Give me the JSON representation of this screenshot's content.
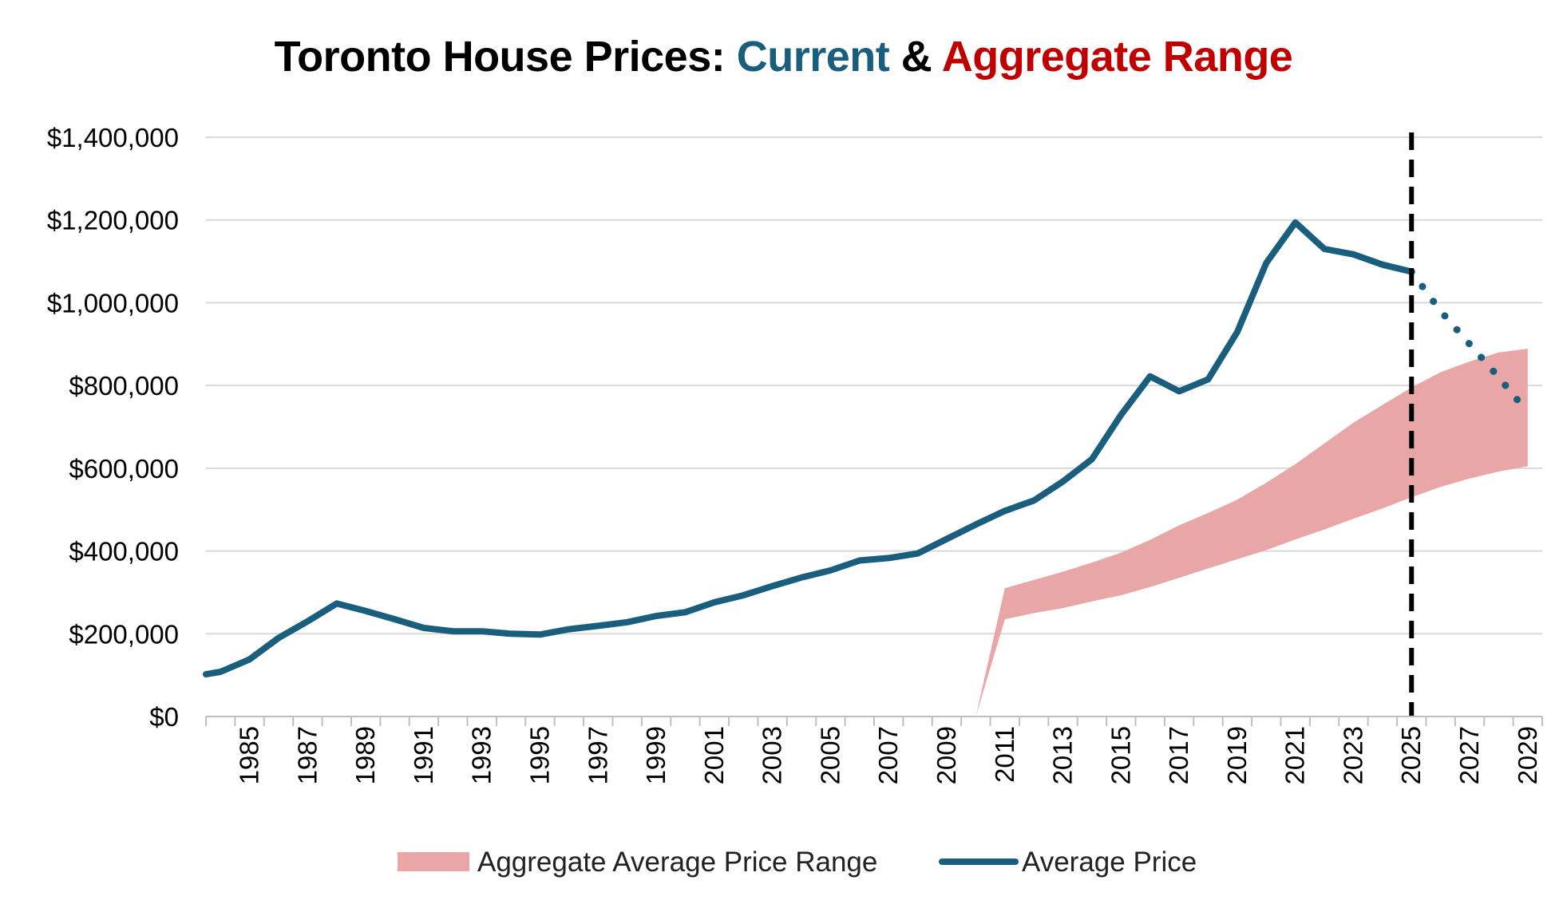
{
  "chart_data": {
    "type": "line",
    "title": {
      "part1": "Toronto House Prices: ",
      "part2": "Current",
      "part3": " & ",
      "part4": "Aggregate Range"
    },
    "colors": {
      "line": "#1a5e7d",
      "band": "#e8a6a6",
      "current_title": "#1a5e7d",
      "aggregate_title": "#c00000",
      "marker": "#000000",
      "grid": "#d9d9d9"
    },
    "xlim": [
      1984,
      2030
    ],
    "ylim": [
      0,
      1400000
    ],
    "y_ticks": [
      0,
      200000,
      400000,
      600000,
      800000,
      1000000,
      1200000,
      1400000
    ],
    "y_tick_labels": [
      "$0",
      "$200,000",
      "$400,000",
      "$600,000",
      "$800,000",
      "$1,000,000",
      "$1,200,000",
      "$1,400,000"
    ],
    "x_tick_labels": [
      "1985",
      "1987",
      "1989",
      "1991",
      "1993",
      "1995",
      "1997",
      "1999",
      "2001",
      "2003",
      "2005",
      "2007",
      "2009",
      "2011",
      "2013",
      "2015",
      "2017",
      "2019",
      "2021",
      "2023",
      "2025",
      "2027",
      "2029"
    ],
    "grid": true,
    "legend_position": "bottom",
    "series": [
      {
        "name": "Average Price",
        "style": "solid",
        "x": [
          1984,
          1984.5,
          1985.5,
          1986.5,
          1987.5,
          1988.5,
          1989.5,
          1990.5,
          1991.5,
          1992.5,
          1993.5,
          1994.5,
          1995.5,
          1996.5,
          1997.5,
          1998.5,
          1999.5,
          2000.5,
          2001.5,
          2002.5,
          2003.5,
          2004.5,
          2005.5,
          2006.5,
          2007.5,
          2008.5,
          2009.5,
          2010.5,
          2011.5,
          2012.5,
          2013.5,
          2014.5,
          2015.5,
          2016.5,
          2017.5,
          2018.5,
          2019.5,
          2020.5,
          2021.5,
          2022.5,
          2023.5,
          2024.5,
          2025.5
        ],
        "y": [
          102000,
          108000,
          138000,
          190000,
          230000,
          273000,
          255000,
          235000,
          214000,
          206000,
          206000,
          200000,
          198000,
          211000,
          219000,
          228000,
          243000,
          252000,
          276000,
          293000,
          315000,
          336000,
          353000,
          377000,
          383000,
          394000,
          429000,
          464000,
          497000,
          522000,
          568000,
          622000,
          729000,
          822000,
          786000,
          815000,
          929000,
          1096000,
          1194000,
          1130000,
          1117000,
          1092000,
          1075000
        ]
      },
      {
        "name": "",
        "style": "dotted",
        "x": [
          2025.5,
          2026.5,
          2027.5,
          2028.5,
          2029.5
        ],
        "y": [
          1075000,
          980000,
          900000,
          820000,
          735000
        ]
      }
    ],
    "band": {
      "name": "Aggregate Average Price Range",
      "x": [
        2010.5,
        2011.5,
        2012.5,
        2013.5,
        2014.5,
        2015.5,
        2016.5,
        2017.5,
        2018.5,
        2019.5,
        2020.5,
        2021.5,
        2022.5,
        2023.5,
        2024.5,
        2025.5,
        2026.5,
        2027.5,
        2028.5,
        2029.5
      ],
      "lower": [
        0,
        235000,
        250000,
        262000,
        278000,
        293000,
        313000,
        335000,
        358000,
        380000,
        402000,
        428000,
        452000,
        478000,
        503000,
        530000,
        555000,
        575000,
        592000,
        605000
      ],
      "upper": [
        0,
        310000,
        330000,
        350000,
        372000,
        396000,
        427000,
        462000,
        492000,
        524000,
        565000,
        610000,
        660000,
        710000,
        753000,
        795000,
        832000,
        858000,
        880000,
        889000
      ]
    },
    "marker_line": {
      "x": 2025.5,
      "style": "dashed"
    },
    "legend": [
      "Aggregate Average Price Range",
      "Average Price"
    ]
  }
}
